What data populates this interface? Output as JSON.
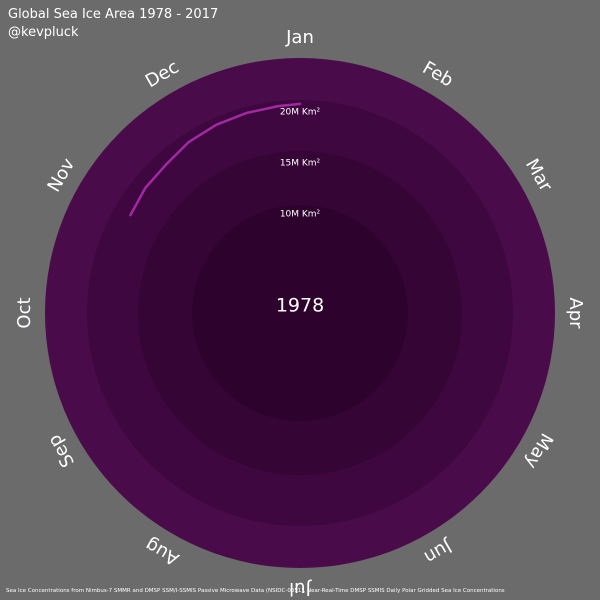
{
  "header": {
    "title": "Global Sea Ice Area 1978 - 2017",
    "handle": "@kevpluck"
  },
  "footer": {
    "source": "Sea Ice Concentrations from Nimbus-7 SMMR and DMSP SSM/I-SSMIS Passive Microwave Data (NSIDC-0051), Near-Real-Time DMSP SSMIS Daily Polar Gridded Sea Ice Concentrations"
  },
  "colors": {
    "background": "#6b6b6b",
    "ring_outer": "#4a0b4a",
    "ring_mid": "#3e073f",
    "ring_inner": "#350535",
    "center": "#2d032e",
    "series": "#a12aa0",
    "text": "#ffffff"
  },
  "chart_data": {
    "type": "line",
    "subtype": "polar-spiral",
    "center_label": "1978",
    "months": [
      "Jan",
      "Feb",
      "Mar",
      "Apr",
      "May",
      "Jun",
      "Jul",
      "Aug",
      "Sep",
      "Oct",
      "Nov",
      "Dec"
    ],
    "radial_labels": [
      "20M Km²",
      "15M Km²",
      "10M Km²"
    ],
    "radial_ticks": [
      20,
      15,
      10
    ],
    "radial_unit": "million km²",
    "radial_range": [
      0,
      25
    ],
    "series": [
      {
        "month_position": [
          10.0,
          10.3,
          10.6,
          10.9,
          11.2,
          11.5,
          11.8,
          12.0
        ],
        "values": [
          19.2,
          19.5,
          19.6,
          20.0,
          20.2,
          20.3,
          20.4,
          20.5
        ]
      }
    ]
  }
}
